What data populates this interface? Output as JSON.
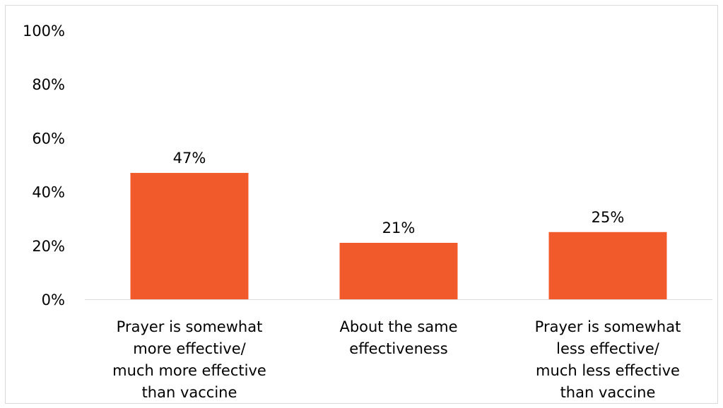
{
  "chart_data": {
    "type": "bar",
    "categories": [
      [
        "Prayer is somewhat",
        "more effective/",
        "much more effective",
        "than vaccine"
      ],
      [
        "About the same",
        "effectiveness"
      ],
      [
        "Prayer is somewhat",
        "less effective/",
        "much less effective",
        "than vaccine"
      ]
    ],
    "values": [
      47,
      21,
      25
    ],
    "data_labels": [
      "47%",
      "21%",
      "25%"
    ],
    "ylim": [
      0,
      100
    ],
    "y_ticks": [
      0,
      20,
      40,
      60,
      80,
      100
    ],
    "y_tick_labels": [
      "0%",
      "20%",
      "40%",
      "60%",
      "80%",
      "100%"
    ],
    "bar_color": "#F15A2B",
    "grid": false,
    "legend": "none"
  }
}
